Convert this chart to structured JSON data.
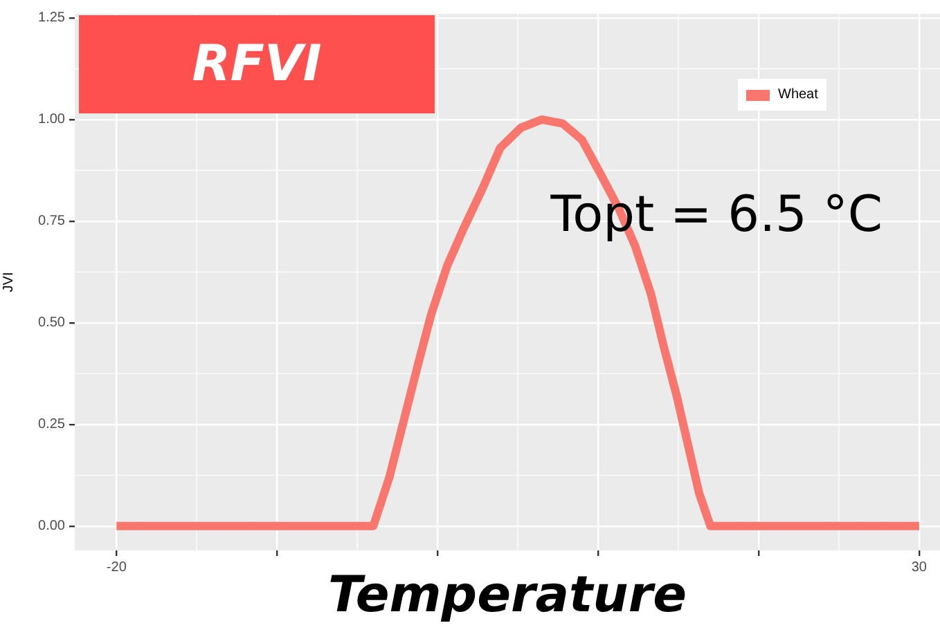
{
  "chart_data": {
    "type": "line",
    "title": "RFVI",
    "xlabel": "Temperature",
    "ylabel": "JVI",
    "annotations": [
      "Topt = 6.5 °C"
    ],
    "series": [
      {
        "name": "Wheat",
        "color": "#f8766d",
        "x": [
          -20,
          -4,
          -3,
          -2.1,
          -1.2,
          -0.4,
          0.6,
          1.6,
          2.8,
          3.9,
          5.2,
          6.5,
          7.8,
          9,
          10.1,
          11.3,
          12.3,
          13.3,
          14.1,
          14.9,
          15.6,
          16.3,
          17,
          30
        ],
        "values": [
          0,
          0,
          0.12,
          0.26,
          0.4,
          0.52,
          0.64,
          0.73,
          0.83,
          0.93,
          0.98,
          1,
          0.99,
          0.95,
          0.87,
          0.78,
          0.69,
          0.57,
          0.44,
          0.32,
          0.2,
          0.08,
          0,
          0
        ]
      }
    ],
    "xlim": [
      -22.6,
      31.3
    ],
    "ylim": [
      -0.06,
      1.26
    ],
    "xticks": [
      -20,
      {
        "value": -10,
        "label": null
      },
      {
        "value": 0,
        "label": null
      },
      {
        "value": 10,
        "label": null
      },
      {
        "value": 20,
        "label": null
      },
      30
    ],
    "yticks": [
      {
        "value": 0,
        "label": "0.00"
      },
      {
        "value": 0.25,
        "label": "0.25"
      },
      {
        "value": 0.5,
        "label": "0.50"
      },
      {
        "value": 0.75,
        "label": "0.75"
      },
      {
        "value": 1,
        "label": "1.00"
      },
      {
        "value": 1.25,
        "label": "1.25"
      }
    ],
    "grid": true,
    "legend": "top right",
    "marker": "none",
    "line_style": "solid"
  }
}
